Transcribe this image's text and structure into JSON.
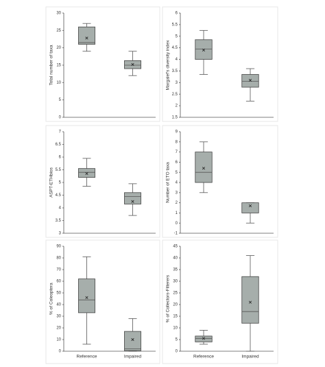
{
  "chart_data": [
    {
      "type": "box",
      "y_label": "Total number of taxa",
      "categories": [
        null,
        null
      ],
      "color": "#a6aeab",
      "boxes": [
        {
          "min": 19,
          "q1": 21,
          "median": 21.5,
          "q3": 26,
          "max": 27,
          "mean": 22.8
        },
        {
          "min": 12,
          "q1": 14,
          "median": 15,
          "q3": 16.3,
          "max": 19,
          "mean": 15.2
        }
      ],
      "ylim": [
        0,
        30
      ],
      "yticks": [
        0,
        5,
        10,
        15,
        20,
        25,
        30
      ]
    },
    {
      "type": "box",
      "y_label": "Margalef's diversity index",
      "categories": [
        null,
        null
      ],
      "color": "#a6aeab",
      "boxes": [
        {
          "min": 3.35,
          "q1": 4.0,
          "median": 4.45,
          "q3": 4.85,
          "max": 5.25,
          "mean": 4.4
        },
        {
          "min": 2.2,
          "q1": 2.8,
          "median": 3.05,
          "q3": 3.35,
          "max": 3.6,
          "mean": 3.1
        }
      ],
      "ylim": [
        1.5,
        6
      ],
      "yticks": [
        1.5,
        2,
        2.5,
        3,
        3.5,
        4,
        4.5,
        5,
        5.5,
        6
      ]
    },
    {
      "type": "box",
      "y_label": "ASPT-ETHbios",
      "categories": [
        null,
        null
      ],
      "color": "#a6aeab",
      "boxes": [
        {
          "min": 4.85,
          "q1": 5.2,
          "median": 5.4,
          "q3": 5.55,
          "max": 5.95,
          "mean": 5.35
        },
        {
          "min": 3.7,
          "q1": 4.15,
          "median": 4.45,
          "q3": 4.6,
          "max": 4.95,
          "mean": 4.25
        }
      ],
      "ylim": [
        3,
        7
      ],
      "yticks": [
        3,
        3.5,
        4,
        4.5,
        5,
        5.5,
        6,
        6.5,
        7
      ]
    },
    {
      "type": "box",
      "y_label": "Number of ETO taxa",
      "categories": [
        null,
        null
      ],
      "color": "#a6aeab",
      "boxes": [
        {
          "min": 3,
          "q1": 4,
          "median": 5,
          "q3": 7,
          "max": 8,
          "mean": 5.4
        },
        {
          "min": 0,
          "q1": 1,
          "median": 1,
          "q3": 2,
          "max": 2,
          "mean": 1.7
        }
      ],
      "ylim": [
        -1,
        9
      ],
      "yticks": [
        -1,
        0,
        1,
        2,
        3,
        4,
        5,
        6,
        7,
        8,
        9
      ]
    },
    {
      "type": "box",
      "y_label": "% of Coleoptera",
      "categories": [
        "Reference",
        "Impaired"
      ],
      "color": "#a6aeab",
      "boxes": [
        {
          "min": 6,
          "q1": 33,
          "median": 44,
          "q3": 62,
          "max": 81,
          "mean": 46
        },
        {
          "min": 0,
          "q1": 0.5,
          "median": 2,
          "q3": 17,
          "max": 28,
          "mean": 10
        }
      ],
      "ylim": [
        0,
        90
      ],
      "yticks": [
        0,
        10,
        20,
        30,
        40,
        50,
        60,
        70,
        80,
        90
      ]
    },
    {
      "type": "box",
      "y_label": "% of Collectors-Filterers",
      "categories": [
        "Reference",
        "Impaired"
      ],
      "color": "#a6aeab",
      "boxes": [
        {
          "min": 3,
          "q1": 4,
          "median": 5.5,
          "q3": 6.5,
          "max": 9,
          "mean": 5.5
        },
        {
          "min": 0,
          "q1": 12,
          "median": 17,
          "q3": 32,
          "max": 41,
          "mean": 21
        }
      ],
      "ylim": [
        0,
        45
      ],
      "yticks": [
        0,
        5,
        10,
        15,
        20,
        25,
        30,
        35,
        40,
        45
      ]
    }
  ]
}
